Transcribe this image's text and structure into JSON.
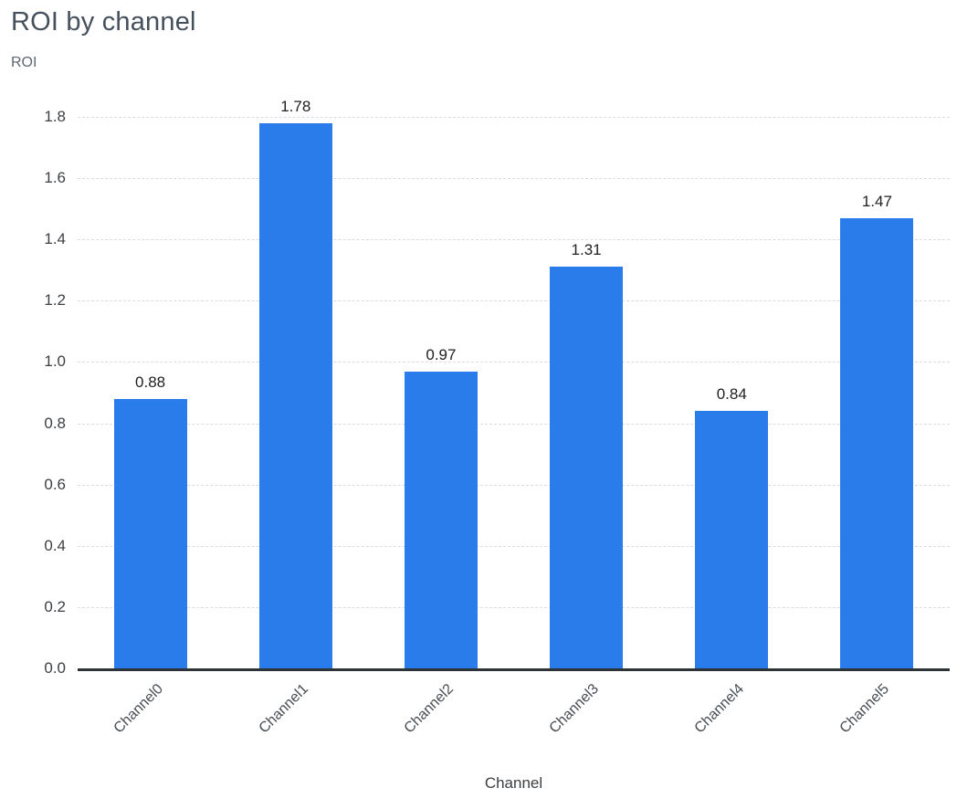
{
  "page": {
    "title": "ROI by channel"
  },
  "chart_data": {
    "type": "bar",
    "title": "ROI by channel",
    "xlabel": "Channel",
    "ylabel": "ROI",
    "categories": [
      "Channel0",
      "Channel1",
      "Channel2",
      "Channel3",
      "Channel4",
      "Channel5"
    ],
    "values": [
      0.88,
      1.78,
      0.97,
      1.31,
      0.84,
      1.47
    ],
    "ylim": [
      0,
      1.8
    ],
    "ytick_step": 0.2,
    "grid": "horizontal-dashed",
    "legend": "none",
    "bar_color": "#2b7ceb",
    "value_labels": true
  }
}
